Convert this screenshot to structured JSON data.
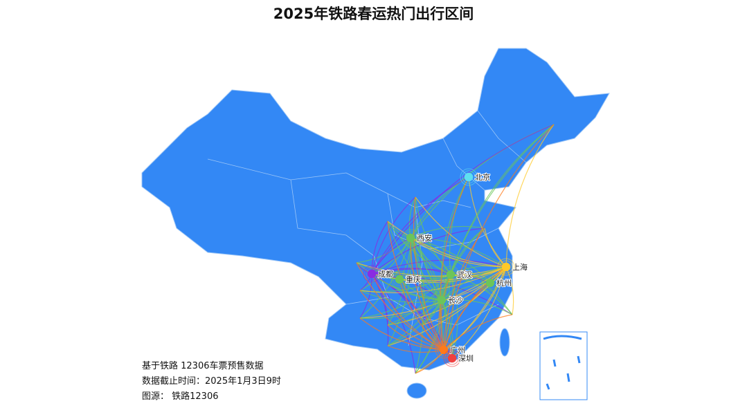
{
  "title": "2025年铁路春运热门出行区间",
  "notes": {
    "line1": "基于铁路 12306车票预售数据",
    "line2": "数据截止时间：2025年1月3日9时",
    "line3": "图源：  铁路12306"
  },
  "map": {
    "land_color": "#3388f5",
    "border_color": "#9cc6f7",
    "hubs": [
      {
        "name": "北京",
        "color": "#5ee0f0"
      },
      {
        "name": "西安",
        "color": "#6cc55a"
      },
      {
        "name": "成都",
        "color": "#8a2be2"
      },
      {
        "name": "重庆",
        "color": "#6cc55a"
      },
      {
        "name": "武汉",
        "color": "#6cc55a"
      },
      {
        "name": "上海",
        "color": "#ffc928"
      },
      {
        "name": "杭州",
        "color": "#6cc55a"
      },
      {
        "name": "长沙",
        "color": "#6cc55a"
      },
      {
        "name": "广州",
        "color": "#ff7a1a"
      },
      {
        "name": "深圳",
        "color": "#f04040"
      }
    ]
  }
}
